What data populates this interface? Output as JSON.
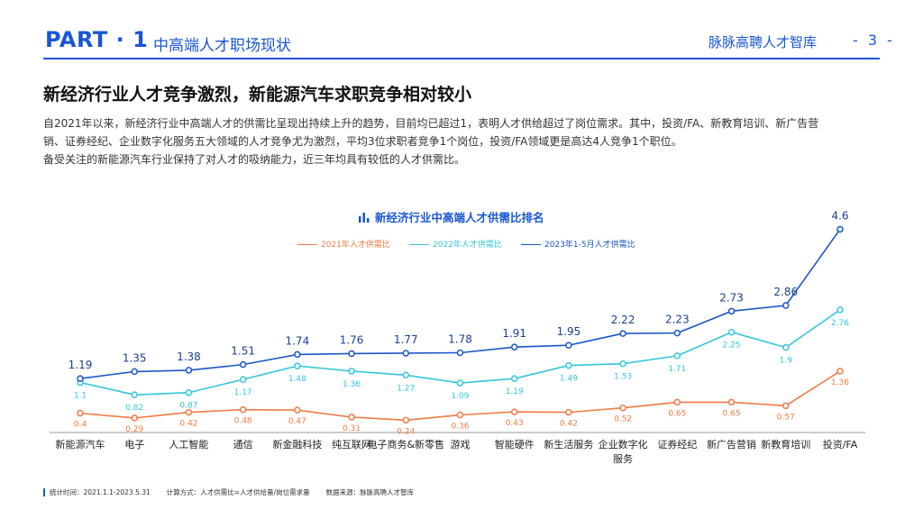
{
  "header": {
    "part": "PART · 1",
    "section": "中高端人才职场现状",
    "brand": "脉脉高聘人才智库",
    "page": "- 3 -"
  },
  "headline": "新经济行业人才竞争激烈，新能源汽车求职竞争相对较小",
  "body": {
    "line1": "自2021年以来，新经济行业中高端人才的供需比呈现出持续上升的趋势，目前均已超过1，表明人才供给超过了岗位需求。其中，投资/FA、新教育培训、新广告营",
    "line2": "销、证券经纪、企业数字化服务五大领域的人才竞争尤为激烈，平均3位求职者竞争1个岗位，投资/FA领域更是高达4人竞争1个职位。",
    "line3": "备受关注的新能源汽车行业保持了对人才的吸纳能力，近三年均具有较低的人才供需比。"
  },
  "chart_data": {
    "type": "line",
    "title": "新经济行业中高端人才供需比排名",
    "categories": [
      "新能源汽车",
      "电子",
      "人工智能",
      "通信",
      "新金融科技",
      "纯互联网",
      "电子商务&新零售",
      "游戏",
      "智能硬件",
      "新生活服务",
      "企业数字化服务",
      "证券经纪",
      "新广告营销",
      "新教育培训",
      "投资/FA"
    ],
    "category_labels": [
      "新能源汽车",
      "电子",
      "人工智能",
      "通信",
      "新金融科技",
      "纯互联网",
      "电子商务&新零售",
      "游戏",
      "智能硬件",
      "新生活服务",
      "企业数字化\n服务",
      "证券经纪",
      "新广告营销",
      "新教育培训",
      "投资/FA"
    ],
    "series": [
      {
        "name": "2021年人才供需比",
        "color": "#ef7b45",
        "values": [
          0.4,
          0.29,
          0.42,
          0.48,
          0.47,
          0.31,
          0.24,
          0.36,
          0.43,
          0.42,
          0.52,
          0.65,
          0.65,
          0.57,
          1.36
        ]
      },
      {
        "name": "2022年人才供需比",
        "color": "#34c5dc",
        "values": [
          1.1,
          0.82,
          0.87,
          1.17,
          1.48,
          1.36,
          1.27,
          1.09,
          1.19,
          1.49,
          1.53,
          1.71,
          2.25,
          1.9,
          2.76
        ]
      },
      {
        "name": "2023年1-5月人才供需比",
        "color": "#1a56c8",
        "values": [
          1.19,
          1.35,
          1.38,
          1.51,
          1.74,
          1.76,
          1.77,
          1.78,
          1.91,
          1.95,
          2.22,
          2.23,
          2.73,
          2.86,
          4.6
        ]
      }
    ],
    "legend": "top",
    "grid": false
  },
  "footer": {
    "period": "统计时间：2021.1.1-2023.5.31",
    "method": "计算方式：人才供需比=人才供给量/岗位需求量",
    "source": "数据来源：脉脉高聘人才智库"
  }
}
